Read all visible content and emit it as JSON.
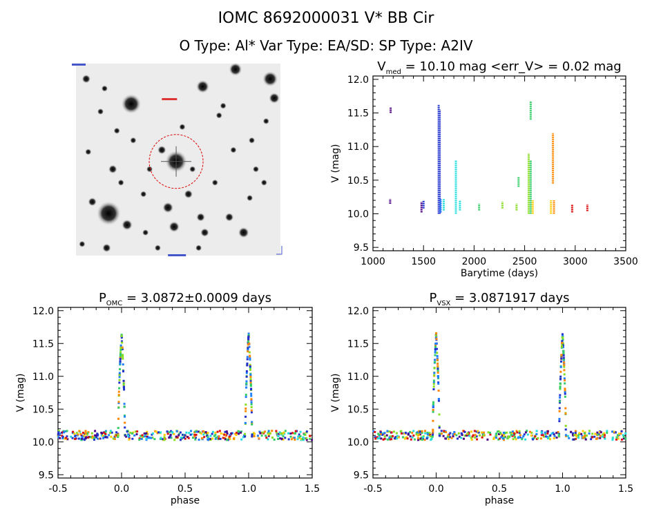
{
  "header": {
    "title": "IOMC 8692000031    V* BB Cir",
    "subtitle": "O Type: Al*  Var Type: EA/SD:  SP Type: A2IV"
  },
  "colors": {
    "series": [
      "#4b0082",
      "#2233cc",
      "#1f7fff",
      "#22dddd",
      "#33cc66",
      "#88dd22",
      "#ffcc00",
      "#ff8800",
      "#dd1111"
    ]
  },
  "chart_data": [
    {
      "type": "image",
      "id": "sky-image",
      "description_icon": "star-field-icon"
    },
    {
      "type": "scatter",
      "id": "lightcurve",
      "title_main": "V",
      "title_sub": "med",
      "title_rest": " = 10.10 mag <err_V> = 0.02 mag",
      "xlabel": "Barytime (days)",
      "ylabel": "V (mag)",
      "xlim": [
        1000,
        3500
      ],
      "ylim": [
        12.05,
        9.45
      ],
      "xticks": [
        1000,
        1500,
        2000,
        2500,
        3000,
        3500
      ],
      "yticks": [
        9.5,
        10.0,
        10.5,
        11.0,
        11.5,
        12.0
      ],
      "groups": [
        {
          "x": 1170,
          "ymin": 10.15,
          "ymax": 10.22,
          "c": 0
        },
        {
          "x": 1175,
          "ymin": 11.5,
          "ymax": 11.58,
          "c": 0
        },
        {
          "x": 1480,
          "ymin": 10.02,
          "ymax": 10.18,
          "c": 0
        },
        {
          "x": 1500,
          "ymin": 10.08,
          "ymax": 10.2,
          "c": 1
        },
        {
          "x": 1650,
          "ymin": 10.0,
          "ymax": 11.62,
          "c": 1
        },
        {
          "x": 1660,
          "ymin": 10.0,
          "ymax": 11.55,
          "c": 1
        },
        {
          "x": 1670,
          "ymin": 10.02,
          "ymax": 10.22,
          "c": 2
        },
        {
          "x": 1700,
          "ymin": 10.05,
          "ymax": 10.22,
          "c": 3
        },
        {
          "x": 1820,
          "ymin": 10.0,
          "ymax": 10.8,
          "c": 3
        },
        {
          "x": 1860,
          "ymin": 10.05,
          "ymax": 10.2,
          "c": 3
        },
        {
          "x": 2050,
          "ymin": 10.05,
          "ymax": 10.15,
          "c": 4
        },
        {
          "x": 2280,
          "ymin": 10.08,
          "ymax": 10.18,
          "c": 5
        },
        {
          "x": 2420,
          "ymin": 10.05,
          "ymax": 10.15,
          "c": 5
        },
        {
          "x": 2440,
          "ymin": 10.4,
          "ymax": 10.55,
          "c": 4
        },
        {
          "x": 2540,
          "ymin": 10.0,
          "ymax": 10.9,
          "c": 5
        },
        {
          "x": 2560,
          "ymin": 10.0,
          "ymax": 10.8,
          "c": 4
        },
        {
          "x": 2560,
          "ymin": 11.4,
          "ymax": 11.68,
          "c": 4
        },
        {
          "x": 2580,
          "ymin": 10.0,
          "ymax": 10.2,
          "c": 6
        },
        {
          "x": 2760,
          "ymin": 10.0,
          "ymax": 10.2,
          "c": 6
        },
        {
          "x": 2780,
          "ymin": 10.45,
          "ymax": 11.2,
          "c": 7
        },
        {
          "x": 2790,
          "ymin": 10.0,
          "ymax": 10.2,
          "c": 7
        },
        {
          "x": 2970,
          "ymin": 10.02,
          "ymax": 10.14,
          "c": 8
        },
        {
          "x": 3120,
          "ymin": 10.04,
          "ymax": 10.14,
          "c": 8
        }
      ]
    },
    {
      "type": "scatter",
      "id": "phase-omc",
      "title_main": "P",
      "title_sub": "OMC",
      "title_rest": " = 3.0872±0.0009 days",
      "xlabel": "phase",
      "ylabel": "V (mag)",
      "xlim": [
        -0.5,
        1.5
      ],
      "ylim": [
        12.05,
        9.45
      ],
      "xticks": [
        -0.5,
        0.0,
        0.5,
        1.0,
        1.5
      ],
      "yticks": [
        9.5,
        10.0,
        10.5,
        11.0,
        11.5,
        12.0
      ],
      "baseline_mag": 10.1,
      "eclipse_depth_mag": 11.65,
      "eclipse_phases": [
        0.0,
        1.0
      ]
    },
    {
      "type": "scatter",
      "id": "phase-vsx",
      "title_main": "P",
      "title_sub": "VSX",
      "title_rest": " = 3.0871917 days",
      "xlabel": "phase",
      "ylabel": "V (mag)",
      "xlim": [
        -0.5,
        1.5
      ],
      "ylim": [
        12.05,
        9.45
      ],
      "xticks": [
        -0.5,
        0.0,
        0.5,
        1.0,
        1.5
      ],
      "yticks": [
        9.5,
        10.0,
        10.5,
        11.0,
        11.5,
        12.0
      ],
      "baseline_mag": 10.1,
      "eclipse_depth_mag": 11.65,
      "eclipse_phases": [
        0.0,
        1.0
      ]
    }
  ]
}
